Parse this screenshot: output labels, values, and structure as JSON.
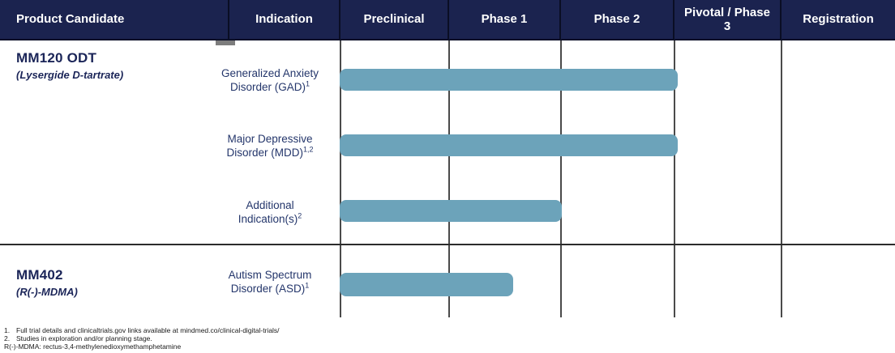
{
  "header": {
    "columns": [
      "Product Candidate",
      "Indication",
      "Preclinical",
      "Phase 1",
      "Phase 2",
      "Pivotal / Phase 3",
      "Registration"
    ]
  },
  "programs": [
    {
      "name": "MM120 ODT",
      "subtitle": "(Lysergide D-tartrate)",
      "indications": [
        {
          "line1": "Generalized Anxiety",
          "line2": "Disorder (GAD)",
          "sup": "1",
          "span": "Preclinical through Phase 2"
        },
        {
          "line1": "Major Depressive",
          "line2": "Disorder (MDD)",
          "sup": "1,2",
          "span": "Preclinical through Phase 2"
        },
        {
          "line1": "Additional",
          "line2": "Indication(s)",
          "sup": "2",
          "span": "Preclinical through Phase 1"
        }
      ]
    },
    {
      "name": "MM402",
      "subtitle": "(R(-)-MDMA)",
      "indications": [
        {
          "line1": "Autism Spectrum",
          "line2": "Disorder (ASD)",
          "sup": "1",
          "span": "Preclinical into Phase 1"
        }
      ]
    }
  ],
  "footnotes": [
    {
      "marker": "1.",
      "text": "Full trial details and clinicaltrials.gov links available at mindmed.co/clinical-digital-trials/"
    },
    {
      "marker": "2.",
      "text": "Studies in exploration and/or planning stage."
    },
    {
      "marker": "",
      "text": "R(-)-MDMA: rectus-3,4-methylenedioxymethamphetamine"
    }
  ],
  "colors": {
    "header_bg": "#1b234f",
    "header_text": "#ffffff",
    "bar": "#6ca3ba",
    "product_text": "#1b2558",
    "indication_text": "#24366b",
    "gridline": "#4a4a4a"
  },
  "chart_data": {
    "type": "bar",
    "orientation": "horizontal",
    "title": "",
    "x_axis_phases": [
      "Preclinical",
      "Phase 1",
      "Phase 2",
      "Pivotal / Phase 3",
      "Registration"
    ],
    "categories": [
      "Generalized Anxiety Disorder (GAD)",
      "Major Depressive Disorder (MDD)",
      "Additional Indication(s)",
      "Autism Spectrum Disorder (ASD)"
    ],
    "groups": [
      "MM120 ODT",
      "MM120 ODT",
      "MM120 ODT",
      "MM402"
    ],
    "values": [
      3.0,
      3.0,
      2.0,
      1.55
    ],
    "value_unit": "phase columns spanned from start of Preclinical (1 = end of Preclinical, 2 = end of Phase 1, 3 = end of Phase 2)",
    "grid": true,
    "legend": false
  }
}
